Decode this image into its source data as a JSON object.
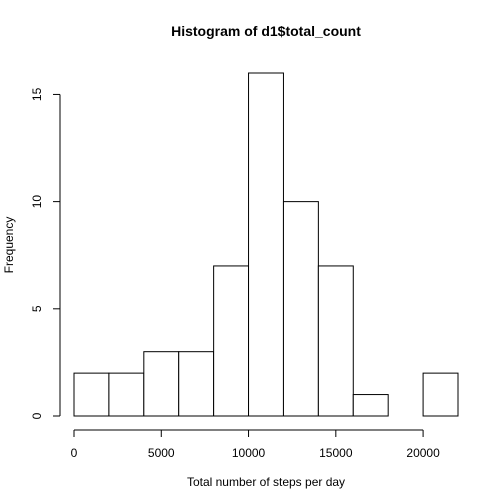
{
  "chart_data": {
    "type": "bar",
    "title": "Histogram of d1$total_count",
    "xlabel": "Total number of steps per day",
    "ylabel": "Frequency",
    "bins": [
      {
        "start": 0,
        "end": 2000,
        "count": 2
      },
      {
        "start": 2000,
        "end": 4000,
        "count": 2
      },
      {
        "start": 4000,
        "end": 6000,
        "count": 3
      },
      {
        "start": 6000,
        "end": 8000,
        "count": 3
      },
      {
        "start": 8000,
        "end": 10000,
        "count": 7
      },
      {
        "start": 10000,
        "end": 12000,
        "count": 16
      },
      {
        "start": 12000,
        "end": 14000,
        "count": 10
      },
      {
        "start": 14000,
        "end": 16000,
        "count": 7
      },
      {
        "start": 16000,
        "end": 18000,
        "count": 1
      },
      {
        "start": 18000,
        "end": 20000,
        "count": 0
      },
      {
        "start": 20000,
        "end": 22000,
        "count": 2
      }
    ],
    "xlim": [
      0,
      22000
    ],
    "ylim": [
      0,
      16
    ],
    "xticks": [
      0,
      5000,
      10000,
      15000,
      20000
    ],
    "xtick_labels": [
      "0",
      "5000",
      "10000",
      "15000",
      "20000"
    ],
    "yticks": [
      0,
      5,
      10,
      15
    ],
    "ytick_labels": [
      "0",
      "5",
      "10",
      "15"
    ],
    "grid": false,
    "colors": {
      "bar_fill": "#ffffff",
      "bar_stroke": "#000000",
      "background": "#ffffff"
    }
  }
}
